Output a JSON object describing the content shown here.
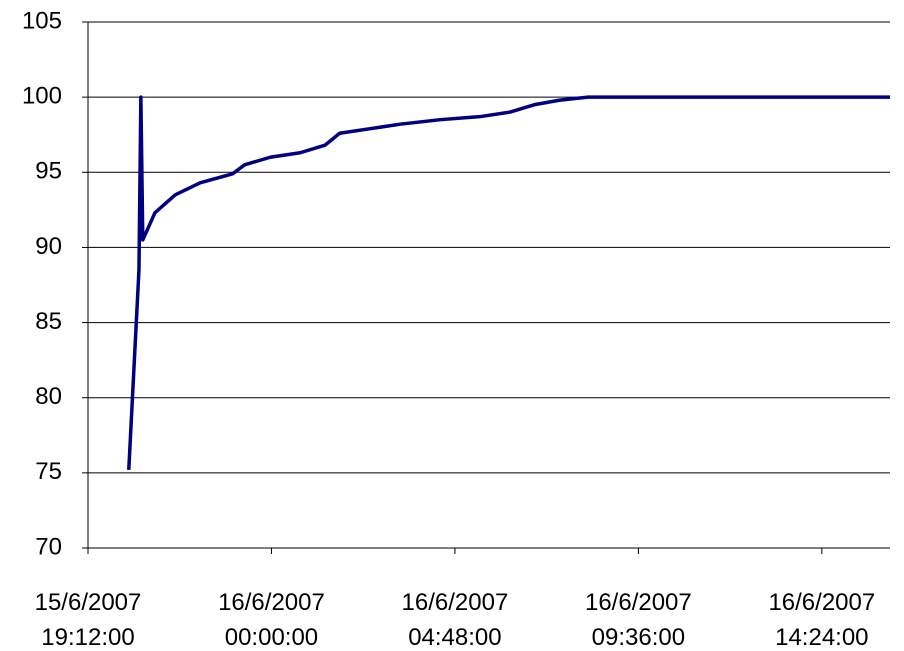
{
  "chart_data": {
    "type": "line",
    "x": [
      "15/6/2007 20:16:00",
      "15/6/2007 20:29:00",
      "15/6/2007 20:32:00",
      "15/6/2007 20:35:00",
      "15/6/2007 20:38:00",
      "15/6/2007 20:57:00",
      "15/6/2007 21:29:00",
      "15/6/2007 22:08:00",
      "15/6/2007 22:59:00",
      "15/6/2007 23:18:00",
      "15/6/2007 23:58:00",
      "16/6/2007 00:45:00",
      "16/6/2007 01:24:00",
      "16/6/2007 01:47:00",
      "16/6/2007 02:35:00",
      "16/6/2007 03:22:00",
      "16/6/2007 04:25:00",
      "16/6/2007 05:27:00",
      "16/6/2007 06:14:00",
      "16/6/2007 06:53:00",
      "16/6/2007 07:33:00",
      "16/6/2007 08:17:00",
      "16/6/2007 16:11:00"
    ],
    "series": [
      {
        "color": "#000080",
        "values": [
          75.2,
          86,
          88.5,
          100,
          90.5,
          92.3,
          93.5,
          94.3,
          94.9,
          95.5,
          96,
          96.3,
          96.8,
          97.6,
          97.9,
          98.2,
          98.5,
          98.7,
          99,
          99.5,
          99.8,
          100,
          100
        ]
      }
    ],
    "xlim": [
      "15/6/2007 19:12:00",
      "16/6/2007 16:11:00"
    ],
    "xticks": [
      "15/6/2007 19:12:00",
      "16/6/2007 00:00:00",
      "16/6/2007 04:48:00",
      "16/6/2007 09:36:00",
      "16/6/2007 14:24:00"
    ],
    "ylim": [
      70,
      105
    ],
    "yticks": [
      70,
      75,
      80,
      85,
      90,
      95,
      100,
      105
    ],
    "grid": true
  }
}
